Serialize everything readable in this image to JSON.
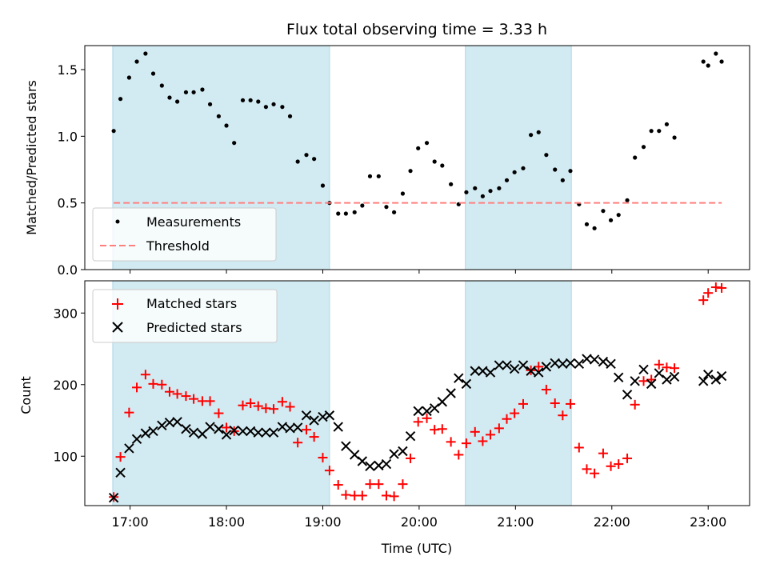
{
  "chart_data": {
    "type": "scatter",
    "title": "Flux total observing time = 3.33 h",
    "xlabel": "Time (UTC)",
    "x_tick_labels": [
      "17:00",
      "18:00",
      "19:00",
      "20:00",
      "21:00",
      "22:00",
      "23:00"
    ],
    "x_tick_hours": [
      17,
      18,
      19,
      20,
      21,
      22,
      23
    ],
    "xlim_hours": [
      16.53,
      23.43
    ],
    "shaded_regions_hours": [
      [
        16.82,
        19.07
      ],
      [
        20.48,
        21.58
      ]
    ],
    "shade_color": "#add8e6",
    "panels": [
      {
        "ylabel": "Matched/Predicted stars",
        "ylim": [
          0,
          1.68
        ],
        "y_ticks": [
          0.0,
          0.5,
          1.0,
          1.5
        ],
        "y_tick_labels": [
          "0.0",
          "0.5",
          "1.0",
          "1.5"
        ],
        "threshold": 0.5,
        "legend_position": "lower-left",
        "series": [
          {
            "name": "Measurements",
            "marker": "dot",
            "color": "#000000",
            "x_hours": [
              16.83,
              16.9,
              16.99,
              17.07,
              17.16,
              17.24,
              17.33,
              17.41,
              17.49,
              17.58,
              17.66,
              17.75,
              17.83,
              17.92,
              18.0,
              18.08,
              18.17,
              18.25,
              18.33,
              18.41,
              18.49,
              18.58,
              18.66,
              18.74,
              18.83,
              18.91,
              19.0,
              19.07,
              19.16,
              19.24,
              19.33,
              19.41,
              19.49,
              19.58,
              19.66,
              19.74,
              19.83,
              19.91,
              19.99,
              20.08,
              20.16,
              20.24,
              20.33,
              20.41,
              20.49,
              20.58,
              20.66,
              20.74,
              20.83,
              20.91,
              20.99,
              21.08,
              21.16,
              21.24,
              21.32,
              21.41,
              21.49,
              21.57,
              21.66,
              21.74,
              21.82,
              21.91,
              21.99,
              22.07,
              22.16,
              22.24,
              22.33,
              22.41,
              22.49,
              22.57,
              22.65,
              22.95,
              23.0,
              23.08,
              23.14
            ],
            "y": [
              1.04,
              1.28,
              1.44,
              1.56,
              1.62,
              1.47,
              1.38,
              1.29,
              1.26,
              1.33,
              1.33,
              1.35,
              1.24,
              1.15,
              1.08,
              0.95,
              1.27,
              1.27,
              1.26,
              1.22,
              1.24,
              1.22,
              1.15,
              0.81,
              0.86,
              0.83,
              0.63,
              0.5,
              0.42,
              0.42,
              0.43,
              0.48,
              0.7,
              0.7,
              0.47,
              0.43,
              0.57,
              0.74,
              0.91,
              0.95,
              0.81,
              0.78,
              0.64,
              0.49,
              0.58,
              0.61,
              0.55,
              0.59,
              0.61,
              0.67,
              0.73,
              0.76,
              1.01,
              1.03,
              0.86,
              0.75,
              0.67,
              0.74,
              0.49,
              0.34,
              0.31,
              0.44,
              0.37,
              0.41,
              0.52,
              0.84,
              0.92,
              1.04,
              1.04,
              1.09,
              0.99,
              1.56,
              1.53,
              1.62,
              1.56
            ]
          },
          {
            "name": "Threshold",
            "marker": "dashed-line",
            "color": "#ff7f7f"
          }
        ]
      },
      {
        "ylabel": "Count",
        "ylim": [
          31,
          345
        ],
        "y_ticks": [
          100,
          200,
          300
        ],
        "y_tick_labels": [
          "100",
          "200",
          "300"
        ],
        "legend_position": "upper-left",
        "series": [
          {
            "name": "Matched stars",
            "marker": "plus",
            "color": "#ff0000",
            "x_hours": [
              16.83,
              16.9,
              16.99,
              17.07,
              17.16,
              17.24,
              17.33,
              17.41,
              17.49,
              17.58,
              17.66,
              17.75,
              17.83,
              17.92,
              18.0,
              18.08,
              18.17,
              18.25,
              18.33,
              18.41,
              18.49,
              18.58,
              18.66,
              18.74,
              18.83,
              18.91,
              19.0,
              19.07,
              19.16,
              19.24,
              19.33,
              19.41,
              19.49,
              19.58,
              19.66,
              19.74,
              19.83,
              19.91,
              19.99,
              20.08,
              20.16,
              20.24,
              20.33,
              20.41,
              20.49,
              20.58,
              20.66,
              20.74,
              20.83,
              20.91,
              20.99,
              21.08,
              21.16,
              21.24,
              21.32,
              21.41,
              21.49,
              21.57,
              21.66,
              21.74,
              21.82,
              21.91,
              21.99,
              22.07,
              22.16,
              22.24,
              22.33,
              22.41,
              22.49,
              22.57,
              22.65,
              22.95,
              23.0,
              23.08,
              23.14
            ],
            "y": [
              43,
              99,
              161,
              196,
              214,
              201,
              200,
              190,
              187,
              184,
              180,
              177,
              177,
              160,
              140,
              135,
              171,
              174,
              170,
              167,
              166,
              176,
              169,
              119,
              137,
              127,
              98,
              80,
              60,
              46,
              45,
              45,
              61,
              61,
              45,
              44,
              61,
              97,
              148,
              153,
              137,
              138,
              120,
              102,
              118,
              134,
              121,
              130,
              139,
              152,
              160,
              173,
              220,
              225,
              193,
              174,
              157,
              173,
              112,
              82,
              76,
              104,
              86,
              89,
              97,
              172,
              205,
              207,
              228,
              224,
              223,
              318,
              328,
              336,
              335
            ]
          },
          {
            "name": "Predicted stars",
            "marker": "x",
            "color": "#000000",
            "x_hours": [
              16.83,
              16.9,
              16.99,
              17.07,
              17.16,
              17.24,
              17.33,
              17.41,
              17.49,
              17.58,
              17.66,
              17.75,
              17.83,
              17.92,
              18.0,
              18.08,
              18.17,
              18.25,
              18.33,
              18.41,
              18.49,
              18.58,
              18.66,
              18.74,
              18.83,
              18.91,
              19.0,
              19.07,
              19.16,
              19.24,
              19.33,
              19.41,
              19.49,
              19.58,
              19.66,
              19.74,
              19.83,
              19.91,
              19.99,
              20.08,
              20.16,
              20.24,
              20.33,
              20.41,
              20.49,
              20.58,
              20.66,
              20.74,
              20.83,
              20.91,
              20.99,
              21.08,
              21.16,
              21.24,
              21.32,
              21.41,
              21.49,
              21.57,
              21.66,
              21.74,
              21.82,
              21.91,
              21.99,
              22.07,
              22.16,
              22.24,
              22.33,
              22.41,
              22.49,
              22.57,
              22.65,
              22.95,
              23.0,
              23.08,
              23.14
            ],
            "y": [
              42,
              77,
              111,
              124,
              132,
              135,
              143,
              147,
              148,
              138,
              133,
              131,
              141,
              138,
              130,
              136,
              135,
              135,
              133,
              133,
              133,
              141,
              139,
              140,
              157,
              150,
              155,
              157,
              141,
              114,
              102,
              93,
              86,
              87,
              89,
              103,
              107,
              128,
              163,
              163,
              167,
              176,
              188,
              209,
              201,
              219,
              219,
              217,
              227,
              227,
              222,
              227,
              219,
              217,
              225,
              230,
              229,
              230,
              229,
              236,
              235,
              232,
              229,
              210,
              186,
              205,
              221,
              201,
              216,
              207,
              211,
              205,
              214,
              207,
              212
            ]
          }
        ]
      }
    ]
  }
}
